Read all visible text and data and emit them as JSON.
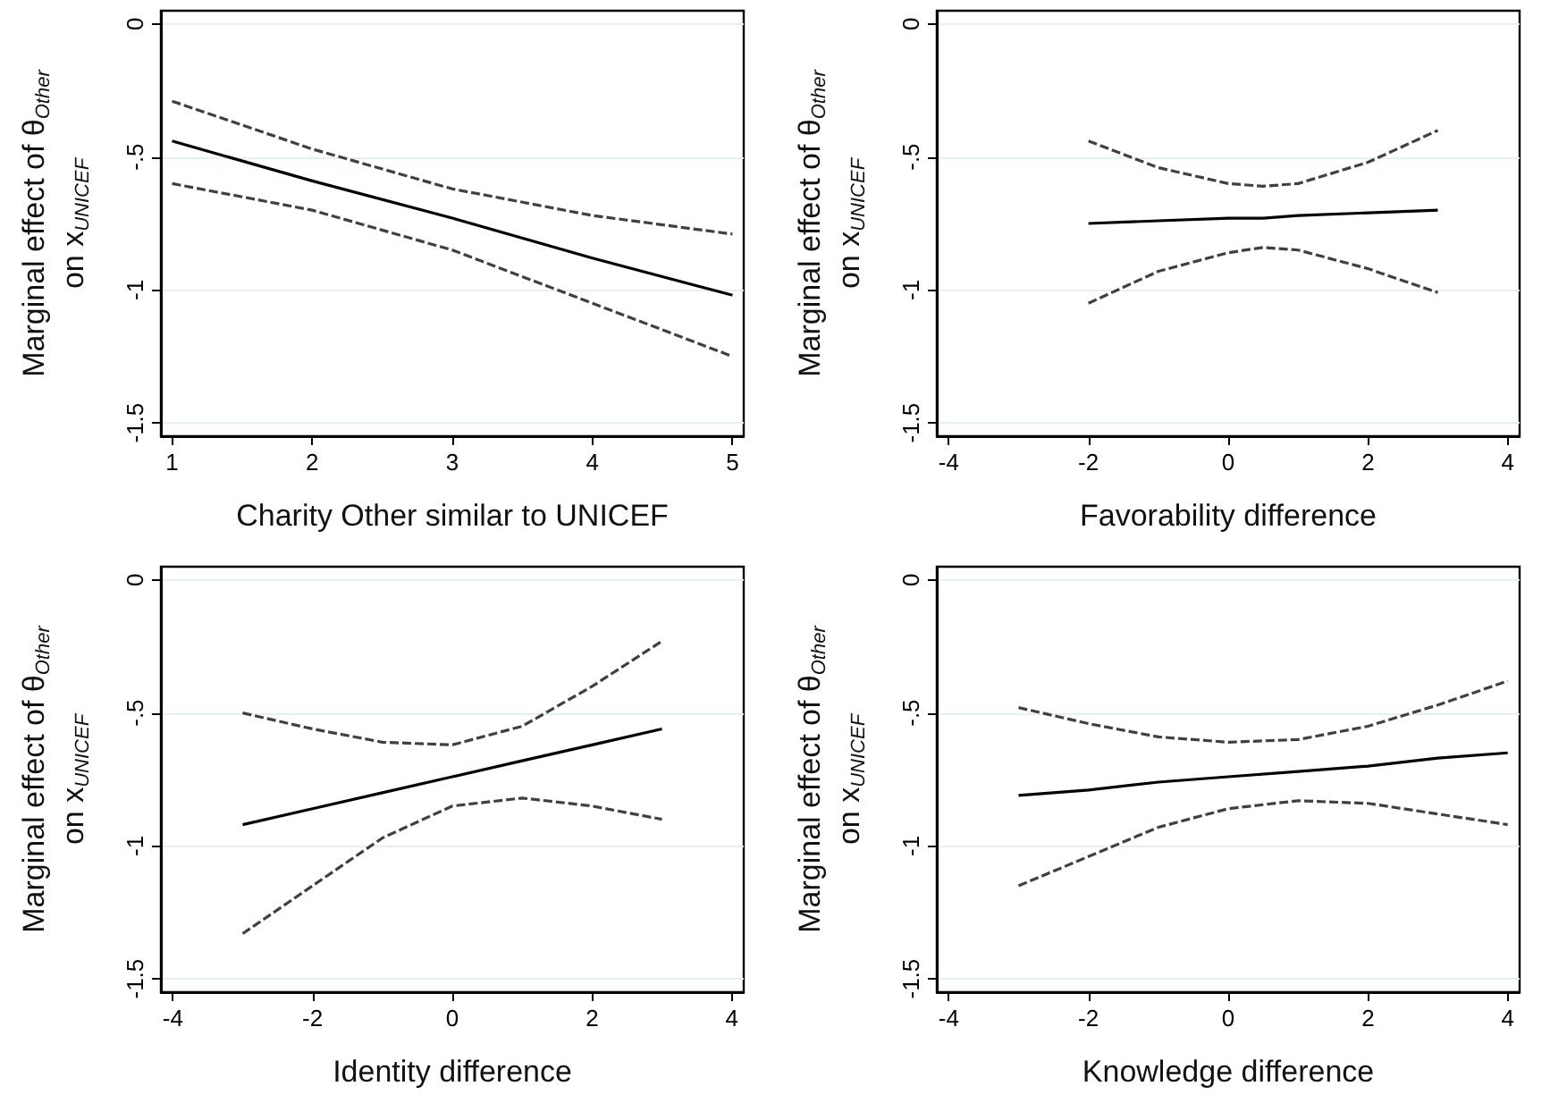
{
  "chart_data": [
    {
      "type": "line",
      "xlabel": "Charity Other similar to UNICEF",
      "ylabel": "Marginal effect of θ$_{Other}$\non x$_{UNICEF}$",
      "xlim": [
        0.92,
        5.08
      ],
      "ylim": [
        -1.55,
        0.05
      ],
      "xticks": [
        1,
        2,
        3,
        4,
        5
      ],
      "yticks": [
        {
          "value": 0,
          "label": "0"
        },
        {
          "value": -0.5,
          "label": "-.5"
        },
        {
          "value": -1,
          "label": "-1"
        },
        {
          "value": -1.5,
          "label": "-1.5"
        }
      ],
      "grid": "y",
      "marker": "none",
      "line_style": "solid",
      "series": [
        {
          "color": "#000000",
          "x": [
            1,
            2,
            3,
            4,
            5
          ],
          "values": [
            -0.44,
            -0.59,
            -0.73,
            -0.88,
            -1.02
          ]
        },
        {
          "color": "#404040",
          "line_style": "dashed",
          "x": [
            1,
            2,
            3,
            4,
            5
          ],
          "values": [
            -0.6,
            -0.7,
            -0.85,
            -1.05,
            -1.25
          ]
        },
        {
          "color": "#404040",
          "line_style": "dashed",
          "x": [
            1,
            2,
            3,
            4,
            5
          ],
          "values": [
            -0.29,
            -0.47,
            -0.62,
            -0.72,
            -0.79
          ]
        }
      ]
    },
    {
      "type": "line",
      "xlabel": "Favorability difference",
      "ylabel": "Marginal effect of θ$_{Other}$\non x$_{UNICEF}$",
      "xlim": [
        -4.17,
        4.17
      ],
      "ylim": [
        -1.55,
        0.05
      ],
      "xticks": [
        -4,
        -2,
        0,
        2,
        4
      ],
      "yticks": [
        {
          "value": 0,
          "label": "0"
        },
        {
          "value": -0.5,
          "label": "-.5"
        },
        {
          "value": -1,
          "label": "-1"
        },
        {
          "value": -1.5,
          "label": "-1.5"
        }
      ],
      "grid": "y",
      "marker": "none",
      "line_style": "solid",
      "series": [
        {
          "color": "#000000",
          "x": [
            -2,
            -1,
            0,
            0.5,
            1,
            2,
            3
          ],
          "values": [
            -0.75,
            -0.74,
            -0.73,
            -0.73,
            -0.72,
            -0.71,
            -0.7
          ]
        },
        {
          "color": "#404040",
          "line_style": "dashed",
          "x": [
            -2,
            -1,
            0,
            0.5,
            1,
            2,
            3
          ],
          "values": [
            -1.05,
            -0.93,
            -0.86,
            -0.84,
            -0.85,
            -0.92,
            -1.01
          ]
        },
        {
          "color": "#404040",
          "line_style": "dashed",
          "x": [
            -2,
            -1,
            0,
            0.5,
            1,
            2,
            3
          ],
          "values": [
            -0.44,
            -0.54,
            -0.6,
            -0.61,
            -0.6,
            -0.52,
            -0.4
          ]
        }
      ]
    },
    {
      "type": "line",
      "xlabel": "Identity difference",
      "ylabel": "Marginal effect of θ$_{Other}$\non x$_{UNICEF}$",
      "xlim": [
        -4.17,
        4.17
      ],
      "ylim": [
        -1.55,
        0.05
      ],
      "xticks": [
        -4,
        -2,
        0,
        2,
        4
      ],
      "yticks": [
        {
          "value": 0,
          "label": "0"
        },
        {
          "value": -0.5,
          "label": "-.5"
        },
        {
          "value": -1,
          "label": "-1"
        },
        {
          "value": -1.5,
          "label": "-1.5"
        }
      ],
      "grid": "y",
      "marker": "none",
      "line_style": "solid",
      "series": [
        {
          "color": "#000000",
          "x": [
            -3,
            -2,
            -1,
            0,
            1,
            2,
            3
          ],
          "values": [
            -0.92,
            -0.86,
            -0.8,
            -0.74,
            -0.68,
            -0.62,
            -0.56
          ]
        },
        {
          "color": "#404040",
          "line_style": "dashed",
          "x": [
            -3,
            -2,
            -1,
            0,
            1,
            2,
            3
          ],
          "values": [
            -1.33,
            -1.15,
            -0.97,
            -0.85,
            -0.82,
            -0.85,
            -0.9
          ]
        },
        {
          "color": "#404040",
          "line_style": "dashed",
          "x": [
            -3,
            -2,
            -1,
            0,
            1,
            2,
            3
          ],
          "values": [
            -0.5,
            -0.56,
            -0.61,
            -0.62,
            -0.55,
            -0.4,
            -0.23
          ]
        }
      ]
    },
    {
      "type": "line",
      "xlabel": "Knowledge difference",
      "ylabel": "Marginal effect of θ$_{Other}$\non x$_{UNICEF}$",
      "xlim": [
        -4.17,
        4.17
      ],
      "ylim": [
        -1.55,
        0.05
      ],
      "xticks": [
        -4,
        -2,
        0,
        2,
        4
      ],
      "yticks": [
        {
          "value": 0,
          "label": "0"
        },
        {
          "value": -0.5,
          "label": "-.5"
        },
        {
          "value": -1,
          "label": "-1"
        },
        {
          "value": -1.5,
          "label": "-1.5"
        }
      ],
      "grid": "y",
      "marker": "none",
      "line_style": "solid",
      "series": [
        {
          "color": "#000000",
          "x": [
            -3,
            -2,
            -1,
            0,
            1,
            2,
            3,
            4
          ],
          "values": [
            -0.81,
            -0.79,
            -0.76,
            -0.74,
            -0.72,
            -0.7,
            -0.67,
            -0.65
          ]
        },
        {
          "color": "#404040",
          "line_style": "dashed",
          "x": [
            -3,
            -2,
            -1,
            0,
            1,
            2,
            3,
            4
          ],
          "values": [
            -1.15,
            -1.04,
            -0.93,
            -0.86,
            -0.83,
            -0.84,
            -0.88,
            -0.92
          ]
        },
        {
          "color": "#404040",
          "line_style": "dashed",
          "x": [
            -3,
            -2,
            -1,
            0,
            1,
            2,
            3,
            4
          ],
          "values": [
            -0.48,
            -0.54,
            -0.59,
            -0.61,
            -0.6,
            -0.55,
            -0.47,
            -0.38
          ]
        }
      ]
    }
  ]
}
